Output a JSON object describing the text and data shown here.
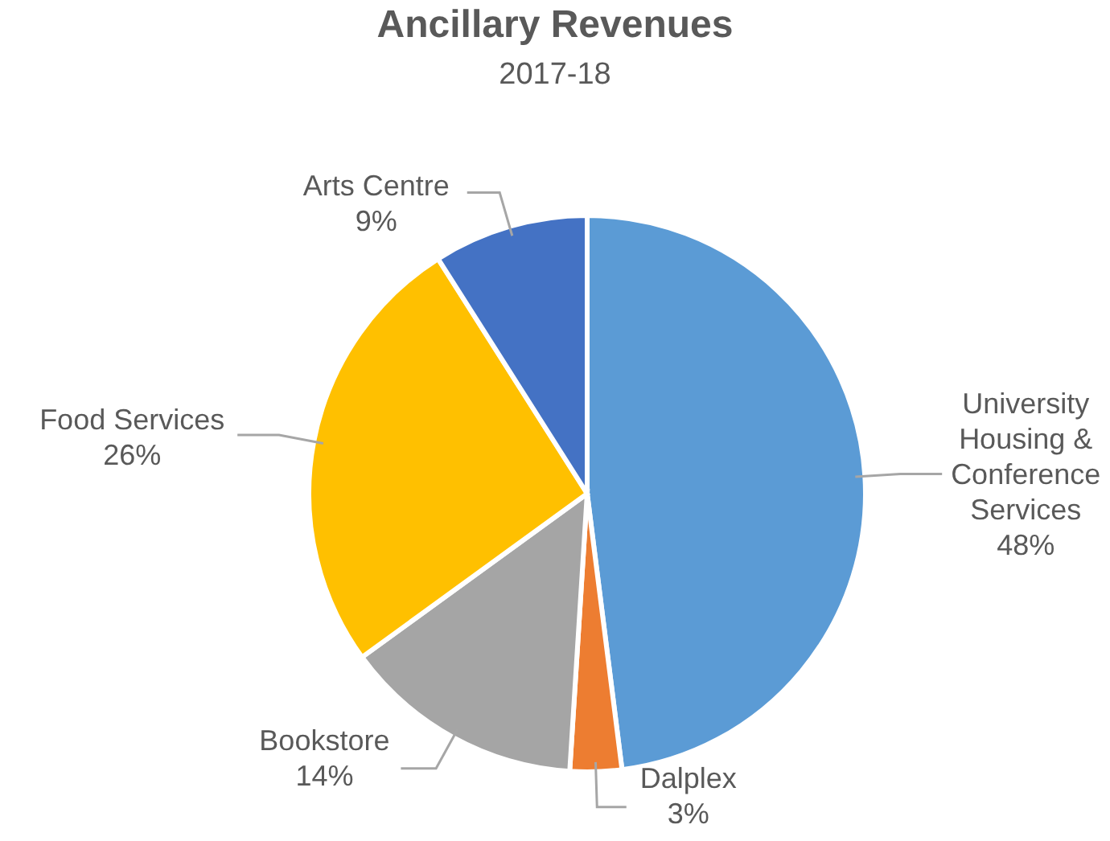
{
  "chart_data": {
    "type": "pie",
    "title": "Ancillary Revenues",
    "subtitle": "2017-18",
    "categories": [
      "University Housing & Conference Services",
      "Dalplex",
      "Bookstore",
      "Food Services",
      "Arts Centre"
    ],
    "values": [
      48,
      3,
      14,
      26,
      9
    ],
    "value_labels": [
      "48%",
      "3%",
      "14%",
      "26%",
      "9%"
    ],
    "colors": [
      "#5b9bd5",
      "#ed7d31",
      "#a5a5a5",
      "#ffc000",
      "#4472c4"
    ],
    "legend": false
  }
}
